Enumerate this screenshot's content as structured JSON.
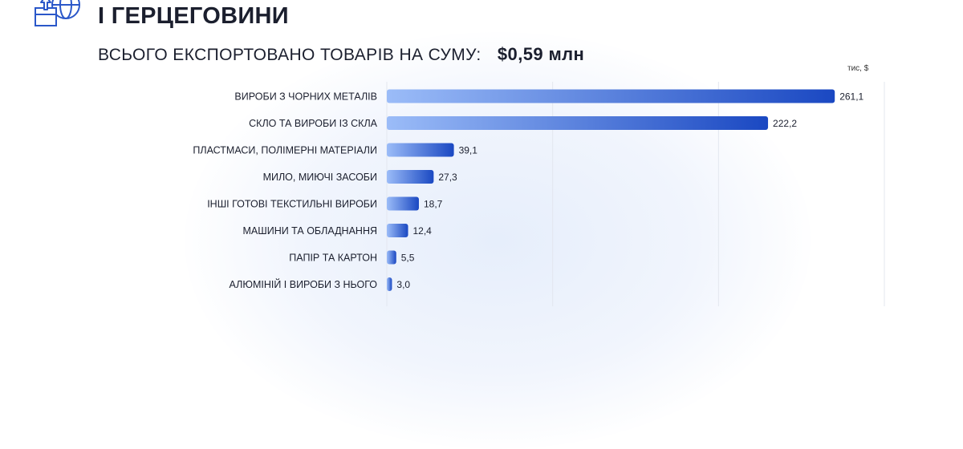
{
  "header": {
    "title": "І ГЕРЦЕГОВИНИ",
    "subtitle_label": "ВСЬОГО ЕКСПОРТОВАНО ТОВАРІВ НА СУМУ:",
    "subtitle_value": "$0,59 млн",
    "unit": "тис, $",
    "icon": "export-globe-box-icon"
  },
  "colors": {
    "bar_start": "#9bbcf8",
    "bar_end": "#1a48c2",
    "text": "#1b1f2e",
    "grid": "#e3e7ef"
  },
  "chart_data": {
    "type": "bar",
    "orientation": "horizontal",
    "title": "",
    "xlabel": "",
    "ylabel": "",
    "unit": "тис, $",
    "xlim": [
      0,
      290
    ],
    "grid": true,
    "categories": [
      "ВИРОБИ З ЧОРНИХ МЕТАЛІВ",
      "СКЛО ТА ВИРОБИ ІЗ СКЛА",
      "ПЛАСТМАСИ, ПОЛІМЕРНІ МАТЕРІАЛИ",
      "МИЛО, МИЮЧІ ЗАСОБИ",
      "ІНШІ ГОТОВІ ТЕКСТИЛЬНІ ВИРОБИ",
      "МАШИНИ ТА ОБЛАДНАННЯ",
      "ПАПІР ТА КАРТОН",
      "АЛЮМІНІЙ І ВИРОБИ З НЬОГО"
    ],
    "values": [
      261.1,
      222.2,
      39.1,
      27.3,
      18.7,
      12.4,
      5.5,
      3.0
    ],
    "value_labels": [
      "261,1",
      "222,2",
      "39,1",
      "27,3",
      "18,7",
      "12,4",
      "5,5",
      "3,0"
    ]
  }
}
